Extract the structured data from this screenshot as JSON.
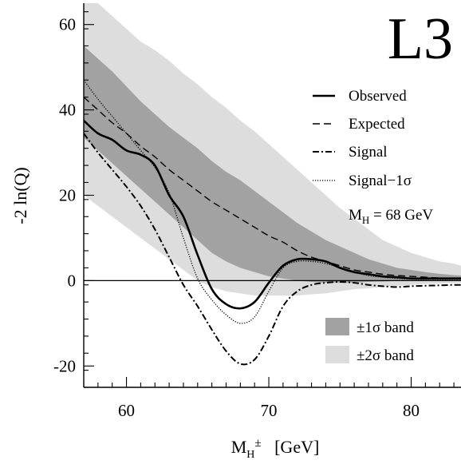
{
  "chart_data": {
    "type": "line",
    "experiment_label": "L3",
    "xlabel": {
      "main": "M",
      "sub": "H",
      "sup": "±",
      "unit": "[GeV]"
    },
    "ylabel": "-2 ln(Q)",
    "xlim": [
      57,
      83.5
    ],
    "ylim": [
      -25,
      65
    ],
    "x_ticks": [
      60,
      70,
      80
    ],
    "y_ticks": [
      -20,
      0,
      20,
      40,
      60
    ],
    "x_tick_labels": [
      "60",
      "70",
      "80"
    ],
    "y_tick_labels": [
      "-20",
      "0",
      "20",
      "40",
      "60"
    ],
    "x_minor_step": 1,
    "y_minor_step": 4,
    "zero_line": true,
    "annotation": {
      "main": "M",
      "sub": "H",
      "rest": " = 68 GeV"
    },
    "legend": {
      "position": "right",
      "lines": [
        {
          "key": "observed",
          "label": "Observed"
        },
        {
          "key": "expected",
          "label": "Expected"
        },
        {
          "key": "signal",
          "label": "Signal"
        },
        {
          "key": "signal_minus_1sigma",
          "label": "Signal−1σ"
        }
      ],
      "bands": [
        {
          "key": "band_1sigma",
          "label": "±1σ band"
        },
        {
          "key": "band_2sigma",
          "label": "±2σ band"
        }
      ]
    },
    "colors": {
      "band_1sigma": "#a2a2a2",
      "band_2sigma": "#dddddd",
      "line": "#000000"
    },
    "x": [
      57,
      58,
      59,
      60,
      61,
      62,
      63,
      64,
      65,
      66,
      67,
      68,
      69,
      70,
      71,
      72,
      73,
      74,
      75,
      76,
      77,
      78,
      79,
      80,
      81,
      82,
      83,
      83.5
    ],
    "series": [
      {
        "key": "observed",
        "name": "Observed",
        "style": "solid",
        "values": [
          37.5,
          34.5,
          33,
          30.5,
          29.5,
          27,
          20,
          15,
          6,
          -2,
          -5.5,
          -6.5,
          -5,
          -0.5,
          3.5,
          5,
          5,
          4.5,
          3,
          2,
          1.5,
          1,
          0.8,
          0.5,
          0.5,
          0.5,
          0.5,
          0.5
        ]
      },
      {
        "key": "expected",
        "name": "Expected",
        "style": "dashed",
        "values": [
          43,
          40,
          37,
          34.5,
          31.5,
          29,
          26,
          23.5,
          21,
          18.5,
          16.5,
          14.5,
          12.5,
          10.5,
          9,
          7,
          5.5,
          4.5,
          3.5,
          2.5,
          2,
          1.5,
          1.2,
          1,
          0.8,
          0.6,
          0.5,
          0.5
        ]
      },
      {
        "key": "signal",
        "name": "Signal",
        "style": "dashdot",
        "values": [
          34.5,
          30,
          26,
          22,
          17.5,
          12,
          5.5,
          -1,
          -6,
          -11.5,
          -16.5,
          -19.5,
          -18.5,
          -13,
          -6,
          -2.5,
          -1,
          -0.5,
          -0.3,
          -0.5,
          -1,
          -1.3,
          -1.5,
          -1.3,
          -1.2,
          -1.1,
          -1,
          -1
        ]
      },
      {
        "key": "signal_minus_1sigma",
        "name": "Signal−1σ",
        "style": "dotted",
        "values": [
          47,
          42.5,
          38.5,
          34.5,
          30.5,
          26.5,
          20.5,
          10,
          0.5,
          -4.5,
          -8,
          -10,
          -8.5,
          -2.5,
          3,
          4.5,
          4.5,
          4,
          3,
          2,
          1.2,
          0.8,
          0.5,
          0.4,
          0.3,
          0.3,
          0.3,
          0.3
        ]
      }
    ],
    "bands": {
      "band_1sigma": {
        "lower": [
          33.5,
          30.5,
          27.5,
          24.5,
          21.5,
          18.5,
          15.5,
          12.5,
          9.5,
          6.5,
          4.5,
          3,
          2,
          1,
          0.5,
          0,
          -0.3,
          -0.5,
          -0.5,
          -0.5,
          -0.3,
          -0.2,
          -0.1,
          0,
          0,
          0,
          0,
          0
        ],
        "upper": [
          55,
          52,
          49,
          45.5,
          42,
          39,
          36,
          33.5,
          31,
          28,
          25.5,
          23.5,
          21,
          18.5,
          16,
          13.5,
          11.5,
          9.5,
          8,
          6.5,
          5,
          4,
          3,
          2.5,
          2,
          1.6,
          1.3,
          1.2
        ]
      },
      "band_2sigma": {
        "lower": [
          20,
          17.5,
          15,
          12.5,
          10,
          7.5,
          5,
          2.5,
          0,
          -1.5,
          -2.5,
          -3,
          -3.5,
          -3.5,
          -3.5,
          -3.5,
          -3.2,
          -3,
          -2.5,
          -2,
          -1.8,
          -1.5,
          -1.2,
          -1,
          -0.8,
          -0.7,
          -0.6,
          -0.5
        ],
        "upper": [
          65,
          65,
          62,
          59,
          56,
          54,
          51.5,
          48.5,
          46,
          43,
          40.5,
          37.5,
          35,
          32,
          29,
          26,
          23,
          20,
          17,
          14.5,
          12,
          9.5,
          8,
          6.5,
          5.5,
          4.5,
          4,
          3.5
        ]
      }
    }
  }
}
